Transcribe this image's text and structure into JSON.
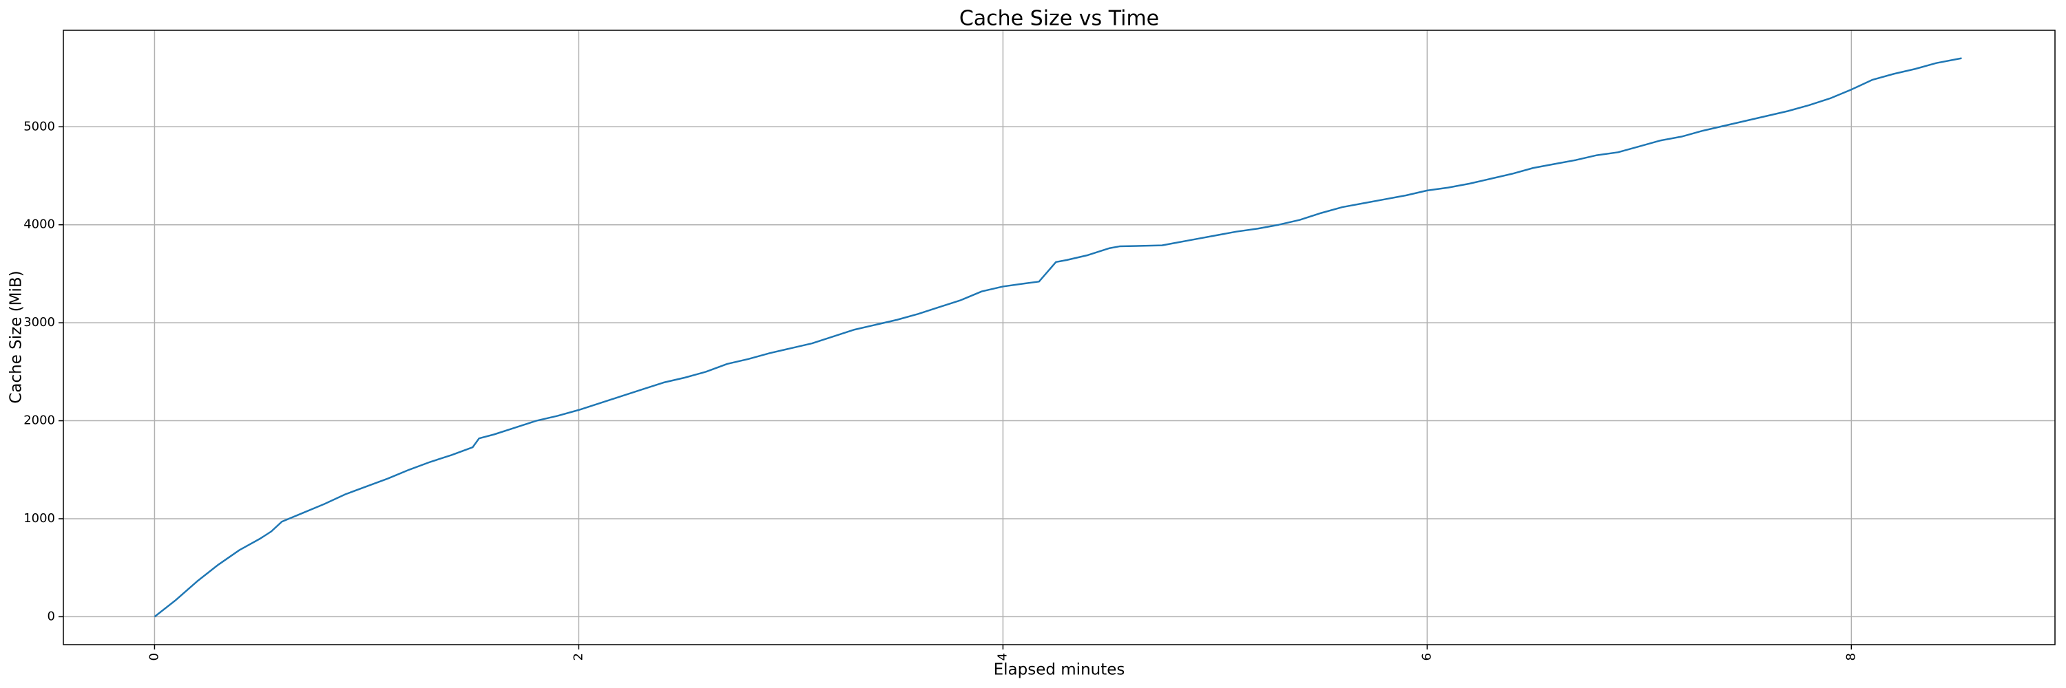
{
  "chart_data": {
    "type": "line",
    "title": "Cache Size vs Time",
    "xlabel": "Elapsed minutes",
    "ylabel": "Cache Size (MiB)",
    "x": [
      0,
      0.1,
      0.2,
      0.3,
      0.4,
      0.5,
      0.55,
      0.6,
      0.7,
      0.8,
      0.9,
      1.0,
      1.1,
      1.2,
      1.3,
      1.4,
      1.5,
      1.53,
      1.6,
      1.7,
      1.8,
      1.9,
      2.0,
      2.1,
      2.2,
      2.3,
      2.4,
      2.5,
      2.6,
      2.7,
      2.8,
      2.9,
      3.0,
      3.1,
      3.2,
      3.3,
      3.4,
      3.5,
      3.6,
      3.7,
      3.8,
      3.9,
      4.0,
      4.1,
      4.17,
      4.25,
      4.3,
      4.4,
      4.5,
      4.55,
      4.75,
      4.8,
      4.9,
      5.0,
      5.1,
      5.2,
      5.3,
      5.4,
      5.5,
      5.6,
      5.7,
      5.8,
      5.9,
      6.0,
      6.1,
      6.2,
      6.3,
      6.4,
      6.5,
      6.6,
      6.7,
      6.8,
      6.9,
      7.0,
      7.1,
      7.2,
      7.3,
      7.4,
      7.5,
      7.6,
      7.7,
      7.8,
      7.9,
      8.0,
      8.1,
      8.2,
      8.3,
      8.4,
      8.52
    ],
    "values": [
      0,
      170,
      360,
      530,
      680,
      800,
      870,
      970,
      1060,
      1150,
      1250,
      1330,
      1410,
      1500,
      1580,
      1650,
      1730,
      1820,
      1860,
      1930,
      2000,
      2050,
      2110,
      2180,
      2250,
      2320,
      2390,
      2440,
      2500,
      2580,
      2630,
      2690,
      2740,
      2790,
      2860,
      2930,
      2980,
      3030,
      3090,
      3160,
      3230,
      3320,
      3370,
      3400,
      3420,
      3620,
      3640,
      3690,
      3760,
      3780,
      3790,
      3810,
      3850,
      3890,
      3930,
      3960,
      4000,
      4050,
      4120,
      4180,
      4220,
      4260,
      4300,
      4350,
      4380,
      4420,
      4470,
      4520,
      4580,
      4620,
      4660,
      4710,
      4740,
      4800,
      4860,
      4900,
      4960,
      5010,
      5060,
      5110,
      5160,
      5220,
      5290,
      5380,
      5480,
      5540,
      5590,
      5650,
      5700
    ],
    "color": "#1f77b4",
    "xlim": [
      -0.43,
      8.96
    ],
    "ylim": [
      -285,
      5985
    ],
    "xticks": [
      0,
      2,
      4,
      6,
      8
    ],
    "yticks": [
      0,
      1000,
      2000,
      3000,
      4000,
      5000
    ],
    "grid": true
  }
}
